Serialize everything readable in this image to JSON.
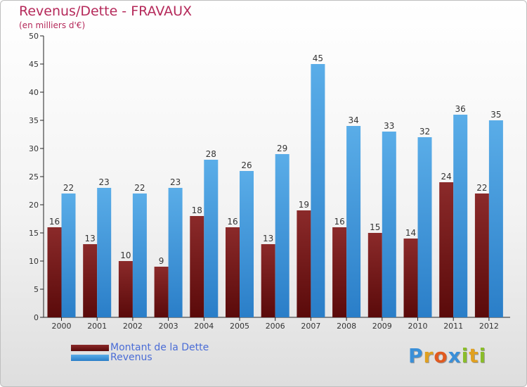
{
  "header": {
    "title": "Revenus/Dette - FRAVAUX",
    "subtitle": "(en milliers d'€)"
  },
  "colors": {
    "title": "#b5295a",
    "dette_top": "#8b2a2a",
    "dette_bottom": "#5a0a0a",
    "revenus_top": "#5aade8",
    "revenus_bottom": "#2a7ec8",
    "axis": "#222222",
    "legend_text": "#4a6cd6"
  },
  "chart_data": {
    "type": "bar",
    "categories": [
      "2000",
      "2001",
      "2002",
      "2003",
      "2004",
      "2005",
      "2006",
      "2007",
      "2008",
      "2009",
      "2010",
      "2011",
      "2012"
    ],
    "series": [
      {
        "name": "Montant de la Dette",
        "values": [
          16,
          13,
          10,
          9,
          18,
          16,
          13,
          19,
          16,
          15,
          14,
          24,
          22
        ]
      },
      {
        "name": "Revenus",
        "values": [
          22,
          23,
          22,
          23,
          28,
          26,
          29,
          45,
          34,
          33,
          32,
          36,
          35
        ]
      }
    ],
    "ylim": [
      0,
      50
    ],
    "yticks": [
      0,
      5,
      10,
      15,
      20,
      25,
      30,
      35,
      40,
      45,
      50
    ],
    "xlabel": "",
    "ylabel": "",
    "grid": false,
    "legend_position": "bottom-left"
  },
  "legend": [
    {
      "label": "Montant de la Dette",
      "swatch": "dette"
    },
    {
      "label": "Revenus",
      "swatch": "revenus"
    }
  ],
  "logo": {
    "letters": [
      "P",
      "r",
      "o",
      "x",
      "i",
      "t",
      "i"
    ],
    "letter_colors": [
      "#3a8fd8",
      "#e0a020",
      "#e05a20",
      "#3a8fd8",
      "#8abd2a",
      "#e0a020",
      "#8abd2a"
    ]
  }
}
